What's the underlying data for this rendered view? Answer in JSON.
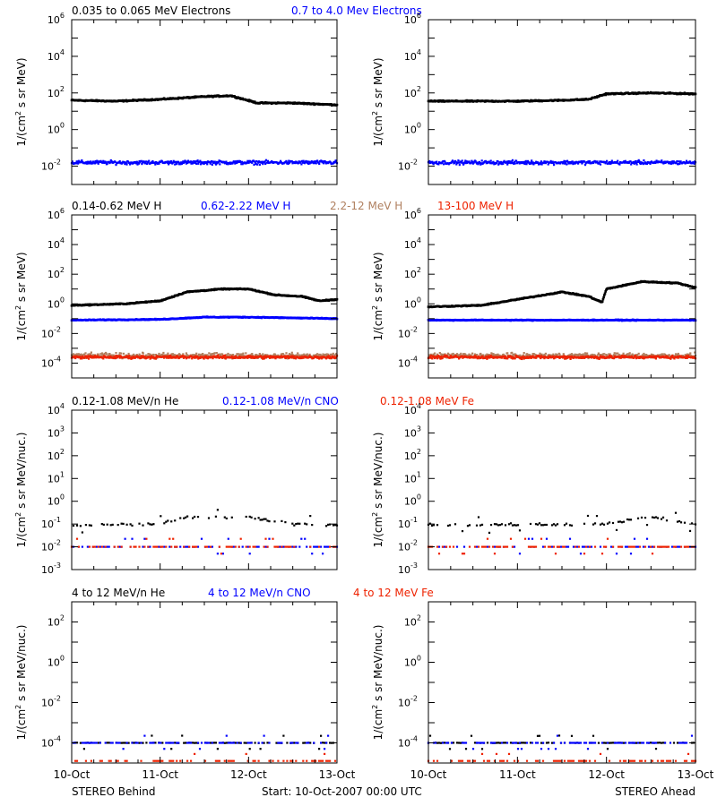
{
  "chart_data": {
    "type": "scatter",
    "x_axis": {
      "ticks": [
        "10-Oct",
        "11-Oct",
        "12-Oct",
        "13-Oct"
      ],
      "xlim_days": [
        0,
        3
      ]
    },
    "footer": {
      "left": "STEREO Behind",
      "center": "Start: 10-Oct-2007 00:00 UTC",
      "right": "STEREO Ahead"
    },
    "columns": [
      "STEREO Behind",
      "STEREO Ahead"
    ],
    "colors": {
      "black": "#000000",
      "blue": "#0000ff",
      "tan": "#b08060",
      "red": "#ee2200"
    },
    "panels": [
      {
        "ylabel_pre": "1/(cm",
        "ylabel_post": " s sr MeV)",
        "ylabel_sup": "2",
        "log_ylim": [
          -3,
          6
        ],
        "yticks": [
          "-2",
          "0",
          "2",
          "4",
          "6"
        ],
        "legend": [
          {
            "text": "0.035 to 0.065 MeV Electrons",
            "color": "#000000"
          },
          {
            "text": "0.7 to 4.0 Mev Electrons",
            "color": "#0000ff"
          }
        ],
        "series": [
          {
            "name": "0.035 to 0.065 MeV Electrons",
            "color": "#000000",
            "style": "line",
            "noise": 0.05,
            "left": [
              [
                0,
                1.6
              ],
              [
                0.5,
                1.55
              ],
              [
                1.0,
                1.65
              ],
              [
                1.5,
                1.8
              ],
              [
                1.8,
                1.85
              ],
              [
                2.1,
                1.45
              ],
              [
                2.5,
                1.45
              ],
              [
                3,
                1.35
              ]
            ],
            "right": [
              [
                0,
                1.55
              ],
              [
                0.5,
                1.55
              ],
              [
                1.0,
                1.55
              ],
              [
                1.5,
                1.6
              ],
              [
                1.8,
                1.65
              ],
              [
                2.0,
                1.95
              ],
              [
                2.5,
                2.0
              ],
              [
                3,
                1.95
              ]
            ]
          },
          {
            "name": "0.7 to 4.0 Mev Electrons",
            "color": "#0000ff",
            "style": "dots",
            "noise": 0.15,
            "left": [
              [
                0,
                -1.8
              ],
              [
                3,
                -1.8
              ]
            ],
            "right": [
              [
                0,
                -1.8
              ],
              [
                3,
                -1.8
              ]
            ]
          }
        ]
      },
      {
        "ylabel_pre": "1/(cm",
        "ylabel_post": " s sr MeV)",
        "ylabel_sup": "2",
        "log_ylim": [
          -5,
          6
        ],
        "yticks": [
          "-4",
          "-2",
          "0",
          "2",
          "4",
          "6"
        ],
        "legend": [
          {
            "text": "0.14-0.62 MeV H",
            "color": "#000000"
          },
          {
            "text": "0.62-2.22 MeV H",
            "color": "#0000ff"
          },
          {
            "text": "2.2-12 MeV H",
            "color": "#b08060"
          },
          {
            "text": "13-100 MeV H",
            "color": "#ee2200"
          }
        ],
        "series": [
          {
            "name": "0.14-0.62 MeV H",
            "color": "#000000",
            "style": "line",
            "noise": 0.05,
            "left": [
              [
                0,
                -0.1
              ],
              [
                0.6,
                0.0
              ],
              [
                1.0,
                0.2
              ],
              [
                1.3,
                0.8
              ],
              [
                1.7,
                1.0
              ],
              [
                2.0,
                1.0
              ],
              [
                2.3,
                0.6
              ],
              [
                2.6,
                0.5
              ],
              [
                2.8,
                0.2
              ],
              [
                3,
                0.3
              ]
            ],
            "right": [
              [
                0,
                -0.2
              ],
              [
                0.6,
                -0.1
              ],
              [
                1.0,
                0.3
              ],
              [
                1.5,
                0.8
              ],
              [
                1.8,
                0.5
              ],
              [
                1.95,
                0.1
              ],
              [
                2.0,
                1.0
              ],
              [
                2.4,
                1.5
              ],
              [
                2.8,
                1.4
              ],
              [
                3,
                1.1
              ]
            ]
          },
          {
            "name": "0.62-2.22 MeV H",
            "color": "#0000ff",
            "style": "line",
            "noise": 0.04,
            "left": [
              [
                0,
                -1.1
              ],
              [
                1.0,
                -1.05
              ],
              [
                1.5,
                -0.9
              ],
              [
                2.0,
                -0.9
              ],
              [
                3,
                -1.0
              ]
            ],
            "right": [
              [
                0,
                -1.1
              ],
              [
                3,
                -1.1
              ]
            ]
          },
          {
            "name": "2.2-12 MeV H",
            "color": "#b08060",
            "style": "dots",
            "noise": 0.25,
            "left": [
              [
                0,
                -3.5
              ],
              [
                3,
                -3.5
              ]
            ],
            "right": [
              [
                0,
                -3.5
              ],
              [
                3,
                -3.5
              ]
            ]
          },
          {
            "name": "13-100 MeV H",
            "color": "#ee2200",
            "style": "dots",
            "noise": 0.15,
            "left": [
              [
                0,
                -3.6
              ],
              [
                3,
                -3.6
              ]
            ],
            "right": [
              [
                0,
                -3.6
              ],
              [
                3,
                -3.6
              ]
            ]
          }
        ]
      },
      {
        "ylabel_pre": "1/(cm",
        "ylabel_post": " s sr MeV/nuc.)",
        "ylabel_sup": "2",
        "log_ylim": [
          -3,
          4
        ],
        "yticks": [
          "-3",
          "-2",
          "-1",
          "0",
          "1",
          "2",
          "3",
          "4"
        ],
        "legend": [
          {
            "text": "0.12-1.08 MeV/n He",
            "color": "#000000"
          },
          {
            "text": "0.12-1.08 MeV/n CNO",
            "color": "#0000ff"
          },
          {
            "text": "0.12-1.08 MeV Fe",
            "color": "#ee2200"
          }
        ],
        "series": [
          {
            "name": "0.12-1.08 MeV/n He",
            "color": "#000000",
            "style": "sparse",
            "noise": 0.3,
            "left": [
              [
                0,
                -1.05
              ],
              [
                1.0,
                -1.0
              ],
              [
                1.3,
                -0.7
              ],
              [
                2.0,
                -0.7
              ],
              [
                2.5,
                -1.0
              ],
              [
                3,
                -1.05
              ]
            ],
            "right": [
              [
                0,
                -1.05
              ],
              [
                2.0,
                -1.0
              ],
              [
                2.3,
                -0.8
              ],
              [
                2.5,
                -0.7
              ],
              [
                3,
                -1.0
              ]
            ]
          },
          {
            "name": "0.12-1.08 MeV/n CNO",
            "color": "#0000ff",
            "style": "sparse",
            "noise": 0.0,
            "left": [
              [
                0,
                -2.0
              ],
              [
                3,
                -2.0
              ]
            ],
            "right": [
              [
                0,
                -2.0
              ],
              [
                3,
                -2.0
              ]
            ]
          },
          {
            "name": "0.12-1.08 MeV Fe",
            "color": "#ee2200",
            "style": "sparse",
            "noise": 0.0,
            "left": [
              [
                0,
                -2.0
              ],
              [
                3,
                -2.0
              ]
            ],
            "right": [
              [
                0,
                -2.0
              ],
              [
                3,
                -2.0
              ]
            ]
          }
        ]
      },
      {
        "ylabel_pre": "1/(cm",
        "ylabel_post": " s sr MeV/nuc.)",
        "ylabel_sup": "2",
        "log_ylim": [
          -5,
          3
        ],
        "yticks": [
          "-4",
          "-2",
          "0",
          "2"
        ],
        "legend": [
          {
            "text": "4 to 12 MeV/n He",
            "color": "#000000"
          },
          {
            "text": "4 to 12 MeV/n CNO",
            "color": "#0000ff"
          },
          {
            "text": "4 to 12 MeV Fe",
            "color": "#ee2200"
          }
        ],
        "series": [
          {
            "name": "4 to 12 MeV/n He",
            "color": "#000000",
            "style": "sparse",
            "noise": 0.05,
            "left": [
              [
                0,
                -4.0
              ],
              [
                3,
                -4.0
              ]
            ],
            "right": [
              [
                0,
                -4.0
              ],
              [
                3,
                -4.0
              ]
            ]
          },
          {
            "name": "4 to 12 MeV/n CNO",
            "color": "#0000ff",
            "style": "sparse",
            "noise": 0.0,
            "left": [
              [
                0,
                -4.0
              ],
              [
                3,
                -4.0
              ]
            ],
            "right": [
              [
                0,
                -4.0
              ],
              [
                3,
                -4.0
              ]
            ]
          },
          {
            "name": "4 to 12 MeV Fe",
            "color": "#ee2200",
            "style": "sparse",
            "noise": 0.0,
            "left": [
              [
                0,
                -4.9
              ],
              [
                3,
                -4.9
              ]
            ],
            "right": [
              [
                0,
                -4.9
              ],
              [
                3,
                -4.9
              ]
            ]
          }
        ]
      }
    ]
  }
}
